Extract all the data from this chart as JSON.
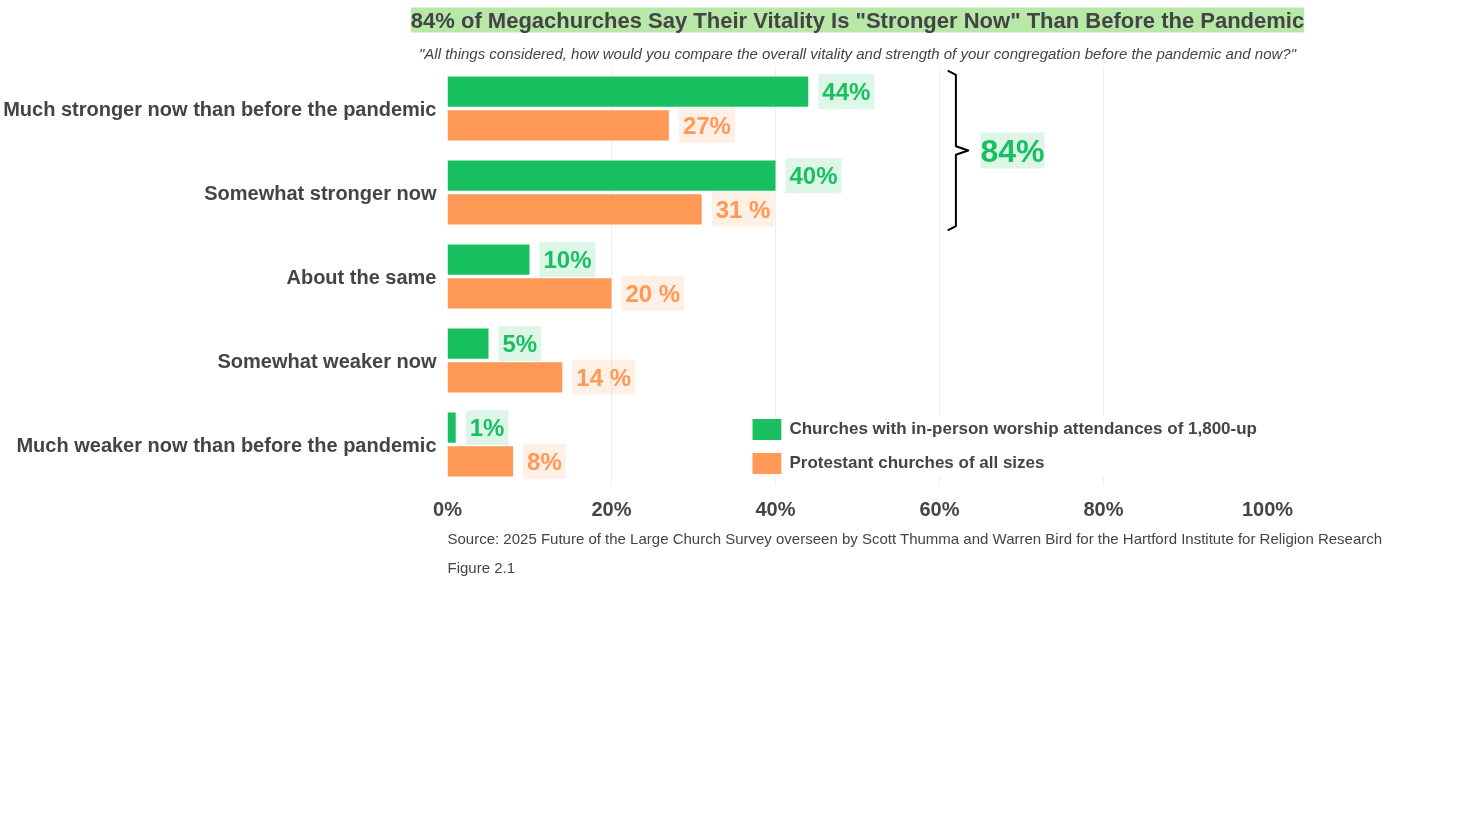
{
  "chart_data": {
    "type": "bar",
    "orientation": "horizontal",
    "title": "84% of Megachurches Say Their Vitality Is \"Stronger Now\" Than Before the Pandemic",
    "subtitle": "\"All things considered, how would you compare the overall vitality and strength of your congregation before the pandemic and now?\"",
    "categories": [
      "Much stronger now than before the pandemic",
      "Somewhat stronger now",
      "About the same",
      "Somewhat weaker now",
      "Much weaker now than before the pandemic"
    ],
    "series": [
      {
        "name": "Churches with in-person worship attendances of 1,800-up",
        "color": "#19c060",
        "values": [
          44,
          40,
          10,
          5,
          1
        ],
        "value_labels": [
          "44%",
          "40%",
          "10%",
          "5%",
          "1%"
        ]
      },
      {
        "name": "Protestant churches of all sizes",
        "color": "#ff9955",
        "values": [
          27,
          31,
          20,
          14,
          8
        ],
        "value_labels": [
          "27%",
          "31 %",
          "20 %",
          "14 %",
          "8%"
        ]
      }
    ],
    "xlim": [
      0,
      100
    ],
    "xticks": [
      {
        "value": 0,
        "label": "0%"
      },
      {
        "value": 20,
        "label": "20%"
      },
      {
        "value": 40,
        "label": "40%"
      },
      {
        "value": 60,
        "label": "60%"
      },
      {
        "value": 80,
        "label": "80%"
      },
      {
        "value": 100,
        "label": "100%"
      }
    ],
    "grid": "x",
    "legend": "bottom right",
    "annotations": [
      "84%",
      "Source: 2025 Future of the Large Church Survey overseen by Scott Thumma and Warren Bird for the Hartford Institute for Religion Research",
      "Figure 2.1"
    ]
  }
}
